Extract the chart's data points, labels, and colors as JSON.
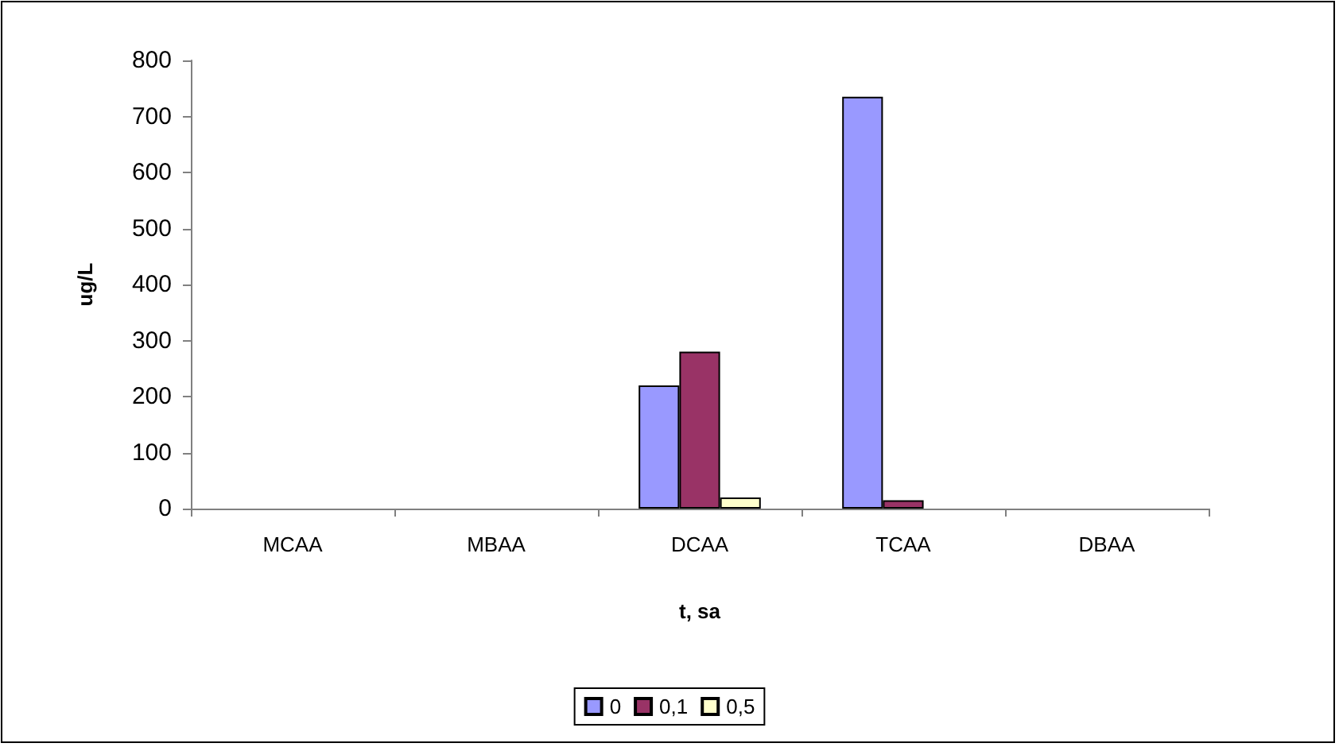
{
  "chart_data": {
    "type": "bar",
    "xlabel": "t, sa",
    "ylabel": "ug/L",
    "categories": [
      "MCAA",
      "MBAA",
      "DCAA",
      "TCAA",
      "DBAA"
    ],
    "series": [
      {
        "name": "0",
        "color": "#9999ff",
        "values": [
          null,
          null,
          220,
          735,
          null
        ]
      },
      {
        "name": "0,1",
        "color": "#993366",
        "values": [
          null,
          null,
          280,
          15,
          null
        ]
      },
      {
        "name": "0,5",
        "color": "#ffffcc",
        "values": [
          null,
          null,
          20,
          null,
          null
        ]
      }
    ],
    "ylim": [
      0,
      800
    ],
    "yticks": [
      0,
      100,
      200,
      300,
      400,
      500,
      600,
      700,
      800
    ],
    "grid": false,
    "legend": "bottom"
  }
}
